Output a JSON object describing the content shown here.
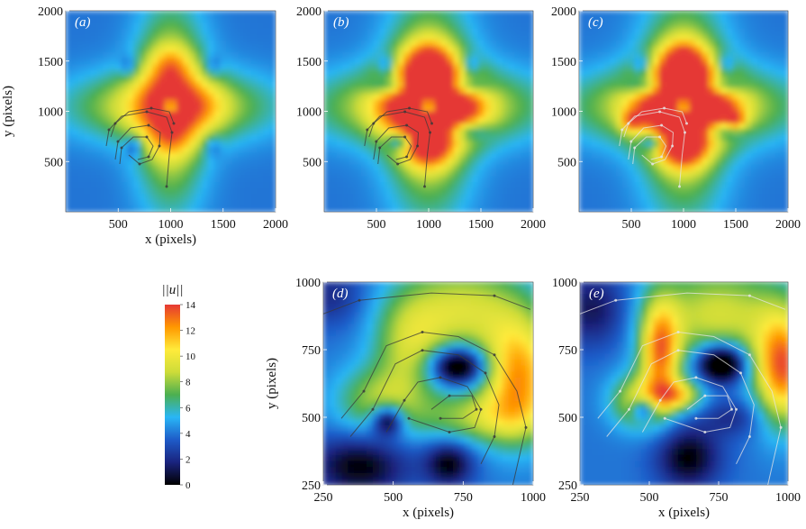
{
  "chart_data": [
    {
      "type": "heatmap",
      "panel_label": "(a)",
      "xlabel": "x (pixels)",
      "ylabel": "y (pixels)",
      "xlim": [
        0,
        2000
      ],
      "ylim": [
        0,
        2000
      ],
      "xticks": [
        "500",
        "1000",
        "1500",
        "2000"
      ],
      "yticks": [
        "500",
        "1000",
        "1500",
        "2000"
      ],
      "streamline_color": "#3a3a3a",
      "blobs": [
        {
          "x": 1000,
          "y": 1050,
          "v": 6.5,
          "sx": 230,
          "sy": 660
        },
        {
          "x": 1000,
          "y": 1050,
          "v": 6.5,
          "sx": 620,
          "sy": 240
        },
        {
          "x": 1000,
          "y": 1480,
          "v": 2.5,
          "sx": 140,
          "sy": 130
        },
        {
          "x": 1000,
          "y": 700,
          "v": 1.5,
          "sx": 150,
          "sy": 120
        },
        {
          "x": 1380,
          "y": 1050,
          "v": 1,
          "sx": 140,
          "sy": 160
        },
        {
          "x": 1000,
          "y": 1050,
          "v": -6,
          "sx": 60,
          "sy": 60
        },
        {
          "x": 650,
          "y": 650,
          "v": -3,
          "sx": 60,
          "sy": 80
        },
        {
          "x": 600,
          "y": 1450,
          "v": -2,
          "sx": 60,
          "sy": 80
        },
        {
          "x": 1400,
          "y": 1450,
          "v": -2,
          "sx": 60,
          "sy": 80
        },
        {
          "x": 1400,
          "y": 650,
          "v": -2,
          "sx": 60,
          "sy": 80
        }
      ]
    },
    {
      "type": "heatmap",
      "panel_label": "(b)",
      "xlabel": "",
      "ylabel": "",
      "xlim": [
        0,
        2000
      ],
      "ylim": [
        0,
        2000
      ],
      "xticks": [
        "500",
        "1000",
        "1500",
        "2000"
      ],
      "yticks": [
        "500",
        "1000",
        "1500",
        "2000"
      ],
      "streamline_color": "#3a3a3a",
      "blobs": [
        {
          "x": 1000,
          "y": 1050,
          "v": 6.5,
          "sx": 280,
          "sy": 720
        },
        {
          "x": 1000,
          "y": 1050,
          "v": 6.5,
          "sx": 720,
          "sy": 260
        },
        {
          "x": 1000,
          "y": 1450,
          "v": 7,
          "sx": 170,
          "sy": 170
        },
        {
          "x": 1000,
          "y": 650,
          "v": 6,
          "sx": 160,
          "sy": 150
        },
        {
          "x": 1350,
          "y": 1050,
          "v": 3,
          "sx": 170,
          "sy": 200
        },
        {
          "x": 650,
          "y": 1050,
          "v": 2,
          "sx": 160,
          "sy": 200
        },
        {
          "x": 1000,
          "y": 1050,
          "v": -7,
          "sx": 70,
          "sy": 70
        },
        {
          "x": 720,
          "y": 700,
          "v": -5,
          "sx": 80,
          "sy": 60
        },
        {
          "x": 620,
          "y": 1250,
          "v": -4,
          "sx": 140,
          "sy": 70
        },
        {
          "x": 1380,
          "y": 1250,
          "v": -4,
          "sx": 140,
          "sy": 70
        },
        {
          "x": 1380,
          "y": 800,
          "v": -4,
          "sx": 140,
          "sy": 70
        },
        {
          "x": 600,
          "y": 1450,
          "v": -3,
          "sx": 60,
          "sy": 80
        },
        {
          "x": 1400,
          "y": 1450,
          "v": -3,
          "sx": 60,
          "sy": 80
        }
      ]
    },
    {
      "type": "heatmap",
      "panel_label": "(c)",
      "xlabel": "",
      "ylabel": "",
      "xlim": [
        0,
        2000
      ],
      "ylim": [
        0,
        2000
      ],
      "xticks": [
        "500",
        "1000",
        "1500",
        "2000"
      ],
      "yticks": [
        "500",
        "1000",
        "1500",
        "2000"
      ],
      "streamline_color": "#e6e6e6",
      "blobs": [
        {
          "x": 1000,
          "y": 1050,
          "v": 6.5,
          "sx": 280,
          "sy": 720
        },
        {
          "x": 1000,
          "y": 1050,
          "v": 6.5,
          "sx": 720,
          "sy": 260
        },
        {
          "x": 1000,
          "y": 1450,
          "v": 7.5,
          "sx": 160,
          "sy": 170
        },
        {
          "x": 1000,
          "y": 650,
          "v": 7,
          "sx": 160,
          "sy": 150
        },
        {
          "x": 1350,
          "y": 1050,
          "v": 3,
          "sx": 170,
          "sy": 200
        },
        {
          "x": 650,
          "y": 1050,
          "v": 2,
          "sx": 160,
          "sy": 200
        },
        {
          "x": 500,
          "y": 900,
          "v": 4,
          "sx": 70,
          "sy": 70
        },
        {
          "x": 1500,
          "y": 900,
          "v": 4,
          "sx": 70,
          "sy": 70
        },
        {
          "x": 1000,
          "y": 1050,
          "v": -7,
          "sx": 70,
          "sy": 70
        },
        {
          "x": 700,
          "y": 700,
          "v": -5,
          "sx": 80,
          "sy": 60
        },
        {
          "x": 620,
          "y": 1250,
          "v": -4,
          "sx": 140,
          "sy": 70
        },
        {
          "x": 1380,
          "y": 1250,
          "v": -4,
          "sx": 140,
          "sy": 70
        },
        {
          "x": 1380,
          "y": 800,
          "v": -4,
          "sx": 140,
          "sy": 70
        },
        {
          "x": 600,
          "y": 1450,
          "v": -3,
          "sx": 60,
          "sy": 80
        },
        {
          "x": 1400,
          "y": 1450,
          "v": -3,
          "sx": 60,
          "sy": 80
        }
      ]
    },
    {
      "type": "heatmap",
      "panel_label": "(d)",
      "xlabel": "x (pixels)",
      "ylabel": "y (pixels)",
      "xlim": [
        250,
        1000
      ],
      "ylim": [
        250,
        1000
      ],
      "xticks": [
        "250",
        "500",
        "750",
        "1000"
      ],
      "yticks": [
        "250",
        "500",
        "750",
        "1000"
      ],
      "streamline_color": "#3a3a3a",
      "blobs": [
        {
          "x": 750,
          "y": 900,
          "v": 5,
          "sx": 160,
          "sy": 120
        },
        {
          "x": 950,
          "y": 650,
          "v": 8,
          "sx": 90,
          "sy": 150
        },
        {
          "x": 560,
          "y": 760,
          "v": 4,
          "sx": 90,
          "sy": 130
        },
        {
          "x": 450,
          "y": 560,
          "v": 4,
          "sx": 110,
          "sy": 90
        },
        {
          "x": 800,
          "y": 500,
          "v": 4,
          "sx": 150,
          "sy": 70
        },
        {
          "x": 730,
          "y": 690,
          "v": -7,
          "sx": 70,
          "sy": 50
        },
        {
          "x": 480,
          "y": 490,
          "v": -6,
          "sx": 40,
          "sy": 40
        },
        {
          "x": 380,
          "y": 320,
          "v": -4,
          "sx": 120,
          "sy": 80
        },
        {
          "x": 700,
          "y": 330,
          "v": -4,
          "sx": 60,
          "sy": 60
        },
        {
          "x": 280,
          "y": 950,
          "v": -2,
          "sx": 80,
          "sy": 80
        }
      ]
    },
    {
      "type": "heatmap",
      "panel_label": "(e)",
      "xlabel": "x (pixels)",
      "ylabel": "",
      "xlim": [
        250,
        1000
      ],
      "ylim": [
        250,
        1000
      ],
      "xticks": [
        "250",
        "500",
        "750",
        "1000"
      ],
      "yticks": [
        "250",
        "500",
        "750",
        "1000"
      ],
      "streamline_color": "#e6e6e6",
      "blobs": [
        {
          "x": 750,
          "y": 880,
          "v": 5,
          "sx": 180,
          "sy": 130
        },
        {
          "x": 980,
          "y": 680,
          "v": 9,
          "sx": 70,
          "sy": 140
        },
        {
          "x": 540,
          "y": 740,
          "v": 8,
          "sx": 50,
          "sy": 130
        },
        {
          "x": 600,
          "y": 580,
          "v": 6,
          "sx": 60,
          "sy": 40
        },
        {
          "x": 460,
          "y": 560,
          "v": 5,
          "sx": 70,
          "sy": 70
        },
        {
          "x": 760,
          "y": 700,
          "v": -8,
          "sx": 60,
          "sy": 50
        },
        {
          "x": 480,
          "y": 530,
          "v": -5,
          "sx": 30,
          "sy": 30
        },
        {
          "x": 640,
          "y": 350,
          "v": -4,
          "sx": 80,
          "sy": 80
        },
        {
          "x": 300,
          "y": 900,
          "v": -3,
          "sx": 90,
          "sy": 100
        },
        {
          "x": 800,
          "y": 500,
          "v": -2,
          "sx": 80,
          "sy": 50
        }
      ]
    }
  ],
  "colorbar": {
    "title": "||u||",
    "ticks": [
      "0",
      "2",
      "4",
      "6",
      "8",
      "10",
      "12",
      "14"
    ],
    "range": [
      0,
      14
    ],
    "stops": [
      "#000000",
      "#1a237e",
      "#1e5bc8",
      "#29b6f6",
      "#4caf50",
      "#cddc39",
      "#ffeb3b",
      "#ff9800",
      "#e53935"
    ]
  },
  "background_level": 4
}
